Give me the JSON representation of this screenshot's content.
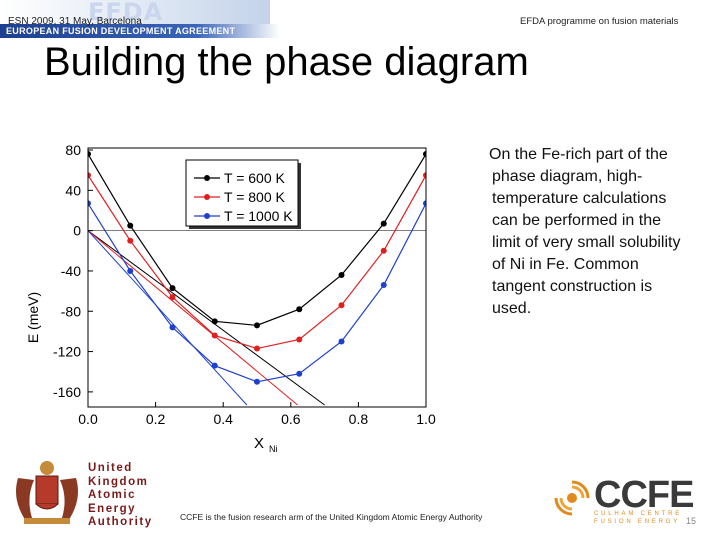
{
  "header": {
    "logo_text": "EFDA",
    "logo_subtitle": "EUROPEAN FUSION DEVELOPMENT AGREEMENT",
    "conference": "ESN 2009, 31 May, Barcelona",
    "programme": "EFDA programme on fusion materials"
  },
  "slide": {
    "title": "Building the phase diagram",
    "description_lines": [
      "On the Fe-rich part of the",
      "phase diagram, high-",
      "temperature calculations",
      "can be performed in the",
      "limit of very small solubility",
      "of Ni in Fe. Common",
      "tangent construction is",
      "used."
    ]
  },
  "chart_data": {
    "type": "line",
    "ylabel": "E (meV)",
    "xlabel": "X",
    "xlabel_sub": "Ni",
    "xlim": [
      0.0,
      1.0
    ],
    "ylim": [
      -175,
      82
    ],
    "x_ticks": [
      "0.0",
      "0.2",
      "0.4",
      "0.6",
      "0.8",
      "1.0"
    ],
    "y_ticks": [
      "80",
      "40",
      "0",
      "-40",
      "-80",
      "-120",
      "-160"
    ],
    "zero_line": true,
    "legend_position": "top-center",
    "series": [
      {
        "name": "T = 600 K",
        "color": "#000000",
        "x": [
          0.0,
          0.125,
          0.25,
          0.375,
          0.5,
          0.625,
          0.75,
          0.875,
          1.0
        ],
        "y": [
          76,
          5,
          -57,
          -90,
          -94,
          -78,
          -44,
          7,
          76
        ]
      },
      {
        "name": "T = 800 K",
        "color": "#e02020",
        "x": [
          0.0,
          0.125,
          0.25,
          0.375,
          0.5,
          0.625,
          0.75,
          0.875,
          1.0
        ],
        "y": [
          55,
          -10,
          -66,
          -104,
          -117,
          -108,
          -74,
          -20,
          55
        ]
      },
      {
        "name": "T = 1000 K",
        "color": "#1f3fcf",
        "x": [
          0.0,
          0.125,
          0.25,
          0.375,
          0.5,
          0.625,
          0.75,
          0.875,
          1.0
        ],
        "y": [
          27,
          -40,
          -96,
          -134,
          -150,
          -142,
          -110,
          -54,
          27
        ]
      }
    ],
    "tangents": [
      {
        "color": "#000000",
        "x": [
          0.0,
          0.7
        ],
        "y": [
          0,
          -173
        ]
      },
      {
        "color": "#e02020",
        "x": [
          0.0,
          0.62
        ],
        "y": [
          0,
          -173
        ]
      },
      {
        "color": "#1f3fcf",
        "x": [
          0.0,
          0.47
        ],
        "y": [
          0,
          -173
        ]
      }
    ]
  },
  "footer": {
    "tagline": "CCFE is the fusion research arm of the United Kingdom Atomic Energy Authority",
    "ukaea_lines": [
      "United",
      "Kingdom",
      "Atomic",
      "Energy",
      "Authority"
    ],
    "ccfe_word": "CCFE",
    "ccfe_sub_lines": [
      "CULHAM CENTRE",
      "FUSION ENERGY"
    ],
    "page_number": "15"
  },
  "colors": {
    "banner_blue": "#1d3f8f",
    "ukaea_red": "#7a1a1a",
    "ccfe_orange": "#e08a1e",
    "ccfe_grey": "#3a3a3a"
  }
}
